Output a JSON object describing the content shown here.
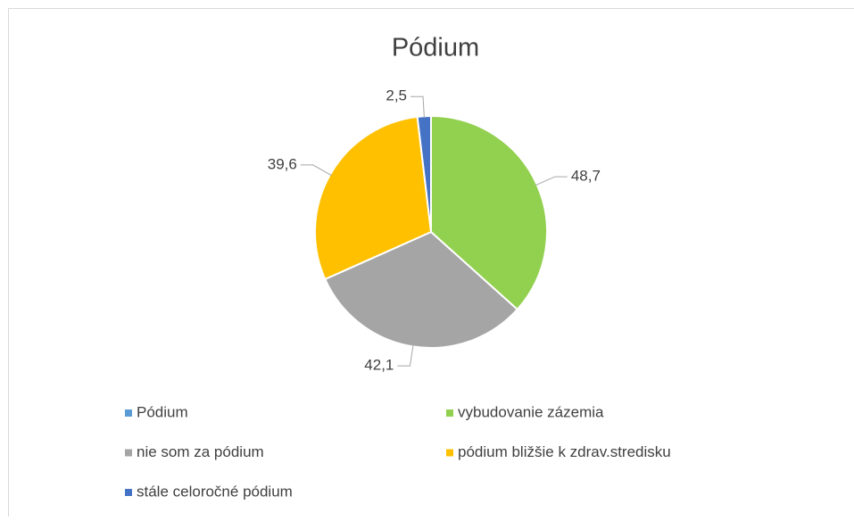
{
  "chart_data": {
    "type": "pie",
    "title": "Pódium",
    "categories": [
      "Pódium",
      "vybudovanie zázemia",
      "nie som za pódium",
      "pódium bližšie k zdrav.stredisku",
      "stále celoročné pódium"
    ],
    "values": [
      null,
      48.7,
      42.1,
      39.6,
      2.5
    ],
    "value_labels": [
      null,
      "48,7",
      "42,1",
      "39,6",
      "2,5"
    ],
    "colors": [
      "#5b9bd5",
      "#92d050",
      "#a5a5a5",
      "#ffc000",
      "#4472c4"
    ],
    "legend": "bottom"
  }
}
